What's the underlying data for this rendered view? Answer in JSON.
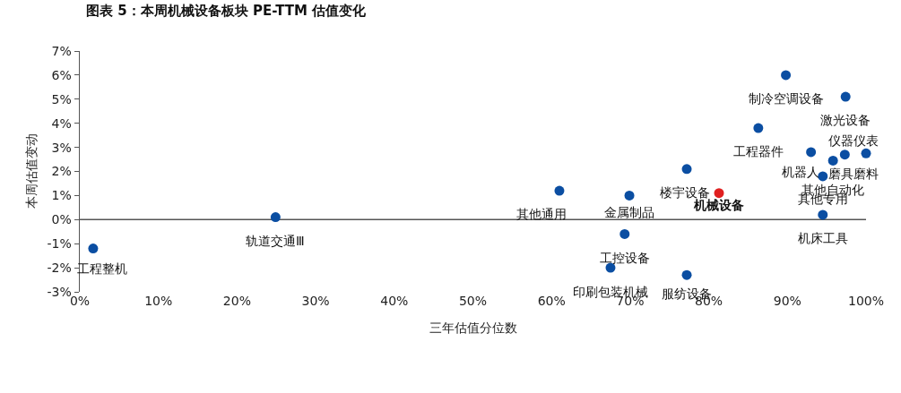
{
  "chart_data": {
    "type": "scatter",
    "title": "图表 5：本周机械设备板块 PE-TTM 估值变化",
    "xlabel": "三年估值分位数",
    "ylabel": "本周估值变动",
    "xlim": [
      0,
      100
    ],
    "ylim": [
      -3,
      7
    ],
    "xticks": [
      {
        "value": 0,
        "label": "0%"
      },
      {
        "value": 10,
        "label": "10%"
      },
      {
        "value": 20,
        "label": "20%"
      },
      {
        "value": 30,
        "label": "30%"
      },
      {
        "value": 40,
        "label": "40%"
      },
      {
        "value": 50,
        "label": "50%"
      },
      {
        "value": 60,
        "label": "60%"
      },
      {
        "value": 70,
        "label": "70%"
      },
      {
        "value": 80,
        "label": "80%"
      },
      {
        "value": 90,
        "label": "90%"
      },
      {
        "value": 100,
        "label": "100%"
      }
    ],
    "yticks": [
      {
        "value": -3,
        "label": "-3%"
      },
      {
        "value": -2,
        "label": "-2%"
      },
      {
        "value": -1,
        "label": "-1%"
      },
      {
        "value": 0,
        "label": "0%"
      },
      {
        "value": 1,
        "label": "1%"
      },
      {
        "value": 2,
        "label": "2%"
      },
      {
        "value": 3,
        "label": "3%"
      },
      {
        "value": 4,
        "label": "4%"
      },
      {
        "value": 5,
        "label": "5%"
      },
      {
        "value": 6,
        "label": "6%"
      },
      {
        "value": 7,
        "label": "7%"
      }
    ],
    "grid": false,
    "legend": false,
    "marker": "circle",
    "ref_lines": [
      {
        "axis": "y",
        "value": 0,
        "color": "#555555"
      }
    ],
    "series": [
      {
        "color": "#0b4ea2",
        "x": [
          1.7,
          24.9,
          61.0,
          69.9,
          69.3,
          67.5,
          77.2,
          77.2,
          86.3,
          89.8,
          97.4,
          93.0,
          100,
          97.3,
          95.8,
          94.5,
          94.5
        ],
        "values": [
          -1.2,
          0.1,
          1.2,
          1.0,
          -0.6,
          -2.0,
          2.1,
          -2.3,
          3.8,
          6.0,
          5.1,
          2.8,
          2.75,
          2.7,
          2.45,
          1.8,
          0.2
        ]
      },
      {
        "name": "机械设备",
        "color": "#e02020",
        "x": [
          81.3
        ],
        "values": [
          1.1
        ]
      }
    ],
    "annotations": [
      {
        "text": "工程整机",
        "x": 1.7,
        "y": -1.2
      },
      {
        "text": "轨道交通Ⅲ",
        "x": 24.9,
        "y": 0.1
      },
      {
        "text": "其他通用",
        "x": 61.0,
        "y": 1.2
      },
      {
        "text": "金属制品",
        "x": 69.9,
        "y": 1.0
      },
      {
        "text": "工控设备",
        "x": 69.3,
        "y": -0.6
      },
      {
        "text": "印刷包装机械",
        "x": 67.5,
        "y": -2.0
      },
      {
        "text": "楼宇设备",
        "x": 77.2,
        "y": 2.1
      },
      {
        "text": "服纺设备",
        "x": 77.2,
        "y": -2.3
      },
      {
        "text": "工程器件",
        "x": 86.3,
        "y": 3.8
      },
      {
        "text": "制冷空调设备",
        "x": 89.8,
        "y": 6.0
      },
      {
        "text": "激光设备",
        "x": 97.4,
        "y": 5.1
      },
      {
        "text": "机器人",
        "x": 93.0,
        "y": 2.8
      },
      {
        "text": "仪器仪表",
        "x": 100,
        "y": 2.75
      },
      {
        "text": "磨具磨料",
        "x": 97.3,
        "y": 2.7
      },
      {
        "text": "其他自动化",
        "x": 95.8,
        "y": 2.45
      },
      {
        "text": "其他专用",
        "x": 94.5,
        "y": 1.8
      },
      {
        "text": "机床工具",
        "x": 94.5,
        "y": 0.2
      }
    ]
  }
}
